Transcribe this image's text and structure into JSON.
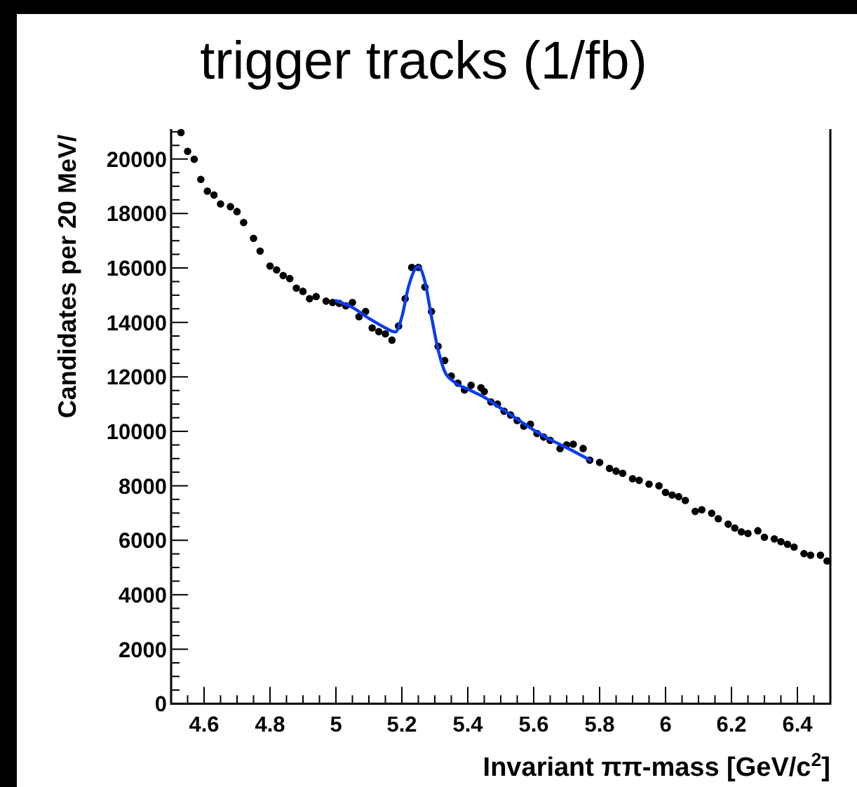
{
  "chart_data": {
    "type": "scatter",
    "title": "trigger tracks (1/fb)",
    "xlabel": "Invariant ππ-mass [GeV/c$^{2}$]",
    "ylabel": "Candidates per 20 MeV/",
    "xlim": [
      4.5,
      6.5
    ],
    "ylim": [
      0,
      21100
    ],
    "xticks": [
      {
        "value": 4.55,
        "label": null
      },
      4.6,
      {
        "value": 4.65,
        "label": null
      },
      {
        "value": 4.7,
        "label": null
      },
      {
        "value": 4.75,
        "label": null
      },
      4.8,
      {
        "value": 4.85,
        "label": null
      },
      {
        "value": 4.9,
        "label": null
      },
      {
        "value": 4.95,
        "label": null
      },
      5,
      {
        "value": 5.05,
        "label": null
      },
      {
        "value": 5.1,
        "label": null
      },
      {
        "value": 5.15,
        "label": null
      },
      5.2,
      {
        "value": 5.25,
        "label": null
      },
      {
        "value": 5.3,
        "label": null
      },
      {
        "value": 5.35,
        "label": null
      },
      5.4,
      {
        "value": 5.45,
        "label": null
      },
      {
        "value": 5.5,
        "label": null
      },
      {
        "value": 5.55,
        "label": null
      },
      5.6,
      {
        "value": 5.65,
        "label": null
      },
      {
        "value": 5.7,
        "label": null
      },
      {
        "value": 5.75,
        "label": null
      },
      5.8,
      {
        "value": 5.85,
        "label": null
      },
      {
        "value": 5.9,
        "label": null
      },
      {
        "value": 5.95,
        "label": null
      },
      6,
      {
        "value": 6.05,
        "label": null
      },
      {
        "value": 6.1,
        "label": null
      },
      {
        "value": 6.15,
        "label": null
      },
      6.2,
      {
        "value": 6.25,
        "label": null
      },
      {
        "value": 6.3,
        "label": null
      },
      {
        "value": 6.35,
        "label": null
      },
      6.4,
      {
        "value": 6.45,
        "label": null
      }
    ],
    "yticks": [
      0,
      {
        "value": 500,
        "label": null
      },
      {
        "value": 1000,
        "label": null
      },
      {
        "value": 1500,
        "label": null
      },
      2000,
      {
        "value": 2500,
        "label": null
      },
      {
        "value": 3000,
        "label": null
      },
      {
        "value": 3500,
        "label": null
      },
      4000,
      {
        "value": 4500,
        "label": null
      },
      {
        "value": 5000,
        "label": null
      },
      {
        "value": 5500,
        "label": null
      },
      6000,
      {
        "value": 6500,
        "label": null
      },
      {
        "value": 7000,
        "label": null
      },
      {
        "value": 7500,
        "label": null
      },
      8000,
      {
        "value": 8500,
        "label": null
      },
      {
        "value": 9000,
        "label": null
      },
      {
        "value": 9500,
        "label": null
      },
      10000,
      {
        "value": 10500,
        "label": null
      },
      {
        "value": 11000,
        "label": null
      },
      {
        "value": 11500,
        "label": null
      },
      12000,
      {
        "value": 12500,
        "label": null
      },
      {
        "value": 13000,
        "label": null
      },
      {
        "value": 13500,
        "label": null
      },
      14000,
      {
        "value": 14500,
        "label": null
      },
      {
        "value": 15000,
        "label": null
      },
      {
        "value": 15500,
        "label": null
      },
      16000,
      {
        "value": 16500,
        "label": null
      },
      {
        "value": 17000,
        "label": null
      },
      {
        "value": 17500,
        "label": null
      },
      18000,
      {
        "value": 18500,
        "label": null
      },
      {
        "value": 19000,
        "label": null
      },
      {
        "value": 19500,
        "label": null
      },
      20000,
      {
        "value": 20500,
        "label": null
      },
      {
        "value": 21000,
        "label": null
      }
    ],
    "grid": false,
    "series": [
      {
        "marker": "circle",
        "color": "#000000",
        "x": [
          4.53,
          4.55,
          4.57,
          4.59,
          4.61,
          4.63,
          4.65,
          4.68,
          4.7,
          4.72,
          4.75,
          4.77,
          4.8,
          4.82,
          4.84,
          4.86,
          4.88,
          4.9,
          4.92,
          4.94,
          4.97,
          4.99,
          5.01,
          5.03,
          5.05,
          5.07,
          5.09,
          5.11,
          5.13,
          5.15,
          5.17,
          5.19,
          5.21,
          5.23,
          5.25,
          5.27,
          5.29,
          5.31,
          5.33,
          5.35,
          5.37,
          5.39,
          5.41,
          5.44,
          5.45,
          5.47,
          5.49,
          5.51,
          5.53,
          5.55,
          5.57,
          5.59,
          5.61,
          5.63,
          5.65,
          5.68,
          5.7,
          5.72,
          5.75,
          5.77,
          5.8,
          5.83,
          5.85,
          5.87,
          5.9,
          5.92,
          5.95,
          5.98,
          6.0,
          6.02,
          6.04,
          6.06,
          6.09,
          6.11,
          6.14,
          6.16,
          6.19,
          6.21,
          6.23,
          6.25,
          6.28,
          6.3,
          6.33,
          6.35,
          6.37,
          6.39,
          6.42,
          6.44,
          6.47,
          6.49
        ],
        "values": [
          20970,
          20280,
          19990,
          19250,
          18820,
          18680,
          18350,
          18250,
          18070,
          17670,
          17090,
          16620,
          16070,
          15930,
          15720,
          15610,
          15260,
          15140,
          14870,
          14950,
          14780,
          14730,
          14700,
          14610,
          14730,
          14210,
          14400,
          13800,
          13660,
          13580,
          13350,
          13870,
          14870,
          16020,
          16020,
          15300,
          14400,
          13120,
          12600,
          12030,
          11770,
          11520,
          11690,
          11600,
          11460,
          11080,
          11000,
          10740,
          10600,
          10400,
          10190,
          10260,
          9920,
          9790,
          9670,
          9370,
          9500,
          9530,
          9370,
          8940,
          8860,
          8640,
          8540,
          8460,
          8260,
          8200,
          8060,
          8000,
          7760,
          7660,
          7600,
          7460,
          7060,
          7120,
          6990,
          6790,
          6590,
          6450,
          6310,
          6250,
          6350,
          6110,
          6050,
          5950,
          5850,
          5750,
          5510,
          5450,
          5450,
          5240
        ]
      },
      {
        "type": "line",
        "marker": "none",
        "color": "#0a3cf0",
        "line_style": "solid",
        "x": [
          5.0,
          5.05,
          5.1,
          5.15,
          5.18,
          5.2,
          5.22,
          5.25,
          5.27,
          5.29,
          5.31,
          5.33,
          5.36,
          5.4,
          5.45,
          5.5,
          5.55,
          5.6,
          5.65,
          5.7,
          5.77
        ],
        "values": [
          14800,
          14550,
          14150,
          13800,
          13650,
          14200,
          15300,
          16050,
          15500,
          14200,
          13000,
          12200,
          11800,
          11550,
          11250,
          10850,
          10450,
          10050,
          9700,
          9400,
          8950
        ]
      }
    ]
  }
}
